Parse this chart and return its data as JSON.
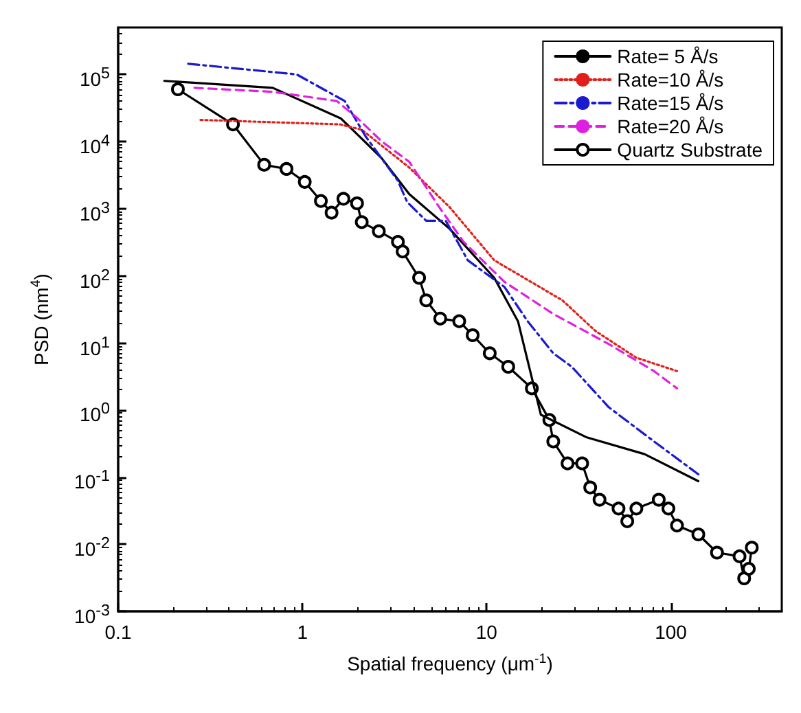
{
  "chart_data": {
    "type": "line",
    "xlabel": "Spatial frequency (μm$^{-1}$)",
    "ylabel": "PSD (nm$^{4}$)",
    "log": "xy",
    "grid": false,
    "legend": "top right",
    "xlim": [
      0.1,
      400
    ],
    "xticks": [
      0.1,
      1,
      10,
      100
    ],
    "ylim": [
      0.001,
      500000
    ],
    "yticks": [
      {
        "value": 0.001,
        "label": "10$^{-3}$"
      },
      {
        "value": 0.01,
        "label": "10$^{-2}$"
      },
      {
        "value": 0.1,
        "label": "10$^{-1}$"
      },
      {
        "value": 1,
        "label": "10$^{0}$"
      },
      {
        "value": 10,
        "label": "10$^{1}$"
      },
      {
        "value": 100,
        "label": "10$^{2}$"
      },
      {
        "value": 1000,
        "label": "10$^{3}$"
      },
      {
        "value": 10000,
        "label": "10$^{4}$"
      },
      {
        "value": 100000,
        "label": "10$^{5}$"
      }
    ],
    "series": [
      {
        "name": "Rate= 5 Å/s",
        "color": "#000000",
        "line_style": "solid",
        "marker": "none",
        "x": [
          0.178,
          0.69,
          1.62,
          2.1,
          2.7,
          3.8,
          6.3,
          11,
          14.8,
          19.7,
          35,
          72,
          141
        ],
        "values": [
          80000,
          63000,
          22000,
          11000,
          5600,
          1650,
          500,
          93,
          21,
          0.85,
          0.39,
          0.22,
          0.087
        ]
      },
      {
        "name": "Rate=10 Å/s",
        "color": "#e0201a",
        "line_style": "dotted",
        "marker": "none",
        "x": [
          0.28,
          1.6,
          2.1,
          3.8,
          6.3,
          11,
          25.8,
          39,
          65,
          108
        ],
        "values": [
          21000,
          18000,
          15000,
          4100,
          1050,
          170,
          43,
          15,
          6,
          3.8
        ]
      },
      {
        "name": "Rate=15 Å/s",
        "color": "#1a1ad0",
        "line_style": "dashdot",
        "marker": "none",
        "x": [
          0.24,
          0.93,
          1.7,
          2.2,
          3.3,
          3.7,
          4.7,
          6,
          7.9,
          12.5,
          16.7,
          23,
          29,
          46,
          81,
          141
        ],
        "values": [
          144000,
          100000,
          40000,
          12000,
          2600,
          1260,
          660,
          660,
          170,
          68,
          21,
          7,
          4.4,
          1.1,
          0.34,
          0.11
        ]
      },
      {
        "name": "Rate=20 Å/s",
        "color": "#e020e0",
        "line_style": "dashed",
        "marker": "none",
        "x": [
          0.26,
          0.69,
          1.54,
          2.0,
          2.7,
          3.8,
          5.6,
          7.5,
          12.5,
          23,
          46,
          81,
          108
        ],
        "values": [
          63000,
          55000,
          40000,
          22000,
          10000,
          5000,
          1000,
          320,
          81,
          27,
          9.6,
          3.8,
          2.1
        ]
      },
      {
        "name": "Quartz Substrate",
        "color": "#000000",
        "line_style": "solid",
        "marker": "circle",
        "x": [
          0.211,
          0.42,
          0.62,
          0.82,
          1.03,
          1.26,
          1.44,
          1.67,
          1.98,
          2.1,
          2.6,
          3.3,
          3.5,
          4.3,
          4.7,
          5.6,
          7.1,
          8.4,
          10.4,
          13.1,
          17.6,
          21.9,
          23,
          27.5,
          33,
          36.5,
          41,
          52,
          58,
          65,
          86,
          97,
          108,
          141,
          178,
          236,
          250,
          265,
          275
        ],
        "values": [
          60000,
          18000,
          4500,
          3900,
          2500,
          1300,
          870,
          1400,
          1200,
          630,
          460,
          320,
          230,
          93,
          43,
          23,
          21,
          13,
          7,
          4.4,
          2.1,
          0.71,
          0.34,
          0.16,
          0.16,
          0.07,
          0.046,
          0.034,
          0.022,
          0.034,
          0.046,
          0.034,
          0.019,
          0.014,
          0.0075,
          0.0066,
          0.0031,
          0.0043,
          0.0089
        ]
      }
    ]
  }
}
